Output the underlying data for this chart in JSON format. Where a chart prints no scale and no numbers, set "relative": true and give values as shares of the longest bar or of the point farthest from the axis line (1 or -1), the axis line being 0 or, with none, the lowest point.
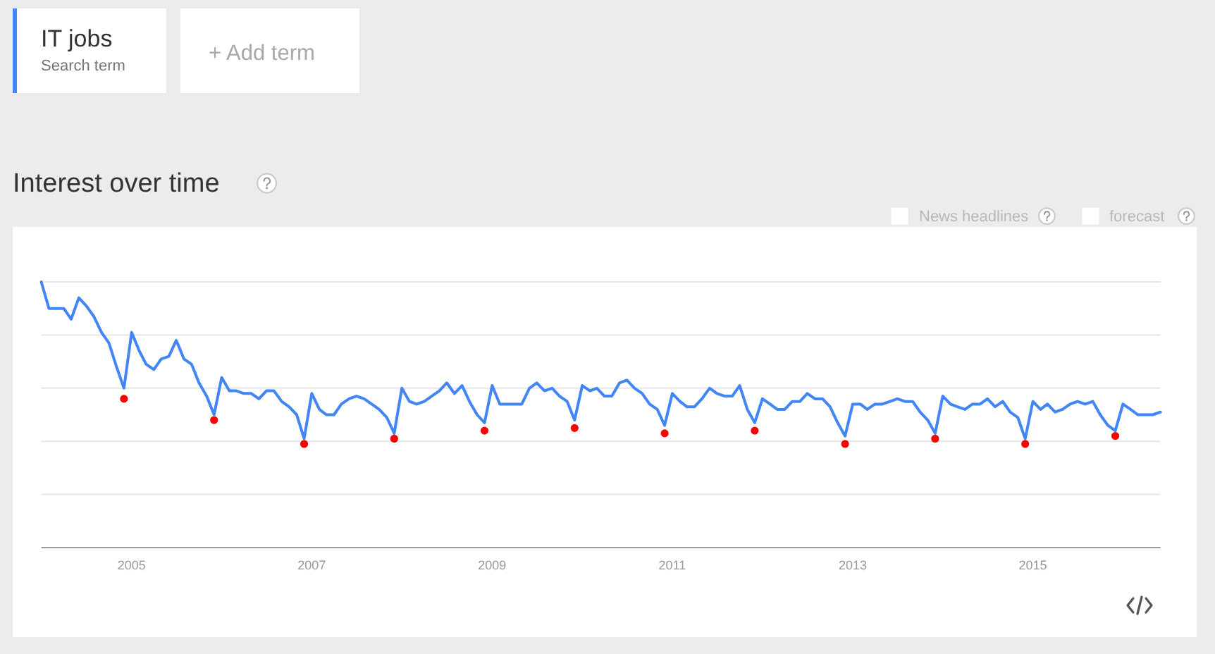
{
  "chart_data": {
    "type": "line",
    "title": "Interest over time",
    "relative": true,
    "x": [
      "2004-01",
      "2004-02",
      "2004-03",
      "2004-04",
      "2004-05",
      "2004-06",
      "2004-07",
      "2004-08",
      "2004-09",
      "2004-10",
      "2004-11",
      "2004-12",
      "2005-01",
      "2005-02",
      "2005-03",
      "2005-04",
      "2005-05",
      "2005-06",
      "2005-07",
      "2005-08",
      "2005-09",
      "2005-10",
      "2005-11",
      "2005-12",
      "2006-01",
      "2006-02",
      "2006-03",
      "2006-04",
      "2006-05",
      "2006-06",
      "2006-07",
      "2006-08",
      "2006-09",
      "2006-10",
      "2006-11",
      "2006-12",
      "2007-01",
      "2007-02",
      "2007-03",
      "2007-04",
      "2007-05",
      "2007-06",
      "2007-07",
      "2007-08",
      "2007-09",
      "2007-10",
      "2007-11",
      "2007-12",
      "2008-01",
      "2008-02",
      "2008-03",
      "2008-04",
      "2008-05",
      "2008-06",
      "2008-07",
      "2008-08",
      "2008-09",
      "2008-10",
      "2008-11",
      "2008-12",
      "2009-01",
      "2009-02",
      "2009-03",
      "2009-04",
      "2009-05",
      "2009-06",
      "2009-07",
      "2009-08",
      "2009-09",
      "2009-10",
      "2009-11",
      "2009-12",
      "2010-01",
      "2010-02",
      "2010-03",
      "2010-04",
      "2010-05",
      "2010-06",
      "2010-07",
      "2010-08",
      "2010-09",
      "2010-10",
      "2010-11",
      "2010-12",
      "2011-01",
      "2011-02",
      "2011-03",
      "2011-04",
      "2011-05",
      "2011-06",
      "2011-07",
      "2011-08",
      "2011-09",
      "2011-10",
      "2011-11",
      "2011-12",
      "2012-01",
      "2012-02",
      "2012-03",
      "2012-04",
      "2012-05",
      "2012-06",
      "2012-07",
      "2012-08",
      "2012-09",
      "2012-10",
      "2012-11",
      "2012-12",
      "2013-01",
      "2013-02",
      "2013-03",
      "2013-04",
      "2013-05",
      "2013-06",
      "2013-07",
      "2013-08",
      "2013-09",
      "2013-10",
      "2013-11",
      "2013-12",
      "2014-01",
      "2014-02",
      "2014-03",
      "2014-04",
      "2014-05",
      "2014-06",
      "2014-07",
      "2014-08",
      "2014-09",
      "2014-10",
      "2014-11",
      "2014-12",
      "2015-01",
      "2015-02",
      "2015-03",
      "2015-04",
      "2015-05",
      "2015-06",
      "2015-07",
      "2015-08",
      "2015-09",
      "2015-10",
      "2015-11",
      "2015-12",
      "2016-01",
      "2016-02",
      "2016-03",
      "2016-04",
      "2016-05",
      "2016-06"
    ],
    "series": [
      {
        "name": "IT jobs",
        "color": "#4285f4",
        "values": [
          1.0,
          0.9,
          0.9,
          0.9,
          0.86,
          0.94,
          0.91,
          0.87,
          0.81,
          0.77,
          0.68,
          0.6,
          0.81,
          0.74,
          0.69,
          0.67,
          0.71,
          0.72,
          0.78,
          0.71,
          0.69,
          0.62,
          0.57,
          0.5,
          0.64,
          0.59,
          0.59,
          0.58,
          0.58,
          0.56,
          0.59,
          0.59,
          0.55,
          0.53,
          0.5,
          0.41,
          0.58,
          0.52,
          0.5,
          0.5,
          0.54,
          0.56,
          0.57,
          0.56,
          0.54,
          0.52,
          0.49,
          0.43,
          0.6,
          0.55,
          0.54,
          0.55,
          0.57,
          0.59,
          0.62,
          0.58,
          0.61,
          0.55,
          0.5,
          0.47,
          0.61,
          0.54,
          0.54,
          0.54,
          0.54,
          0.6,
          0.62,
          0.59,
          0.6,
          0.57,
          0.55,
          0.48,
          0.61,
          0.59,
          0.6,
          0.57,
          0.57,
          0.62,
          0.63,
          0.6,
          0.58,
          0.54,
          0.52,
          0.46,
          0.58,
          0.55,
          0.53,
          0.53,
          0.56,
          0.6,
          0.58,
          0.57,
          0.57,
          0.61,
          0.52,
          0.47,
          0.56,
          0.54,
          0.52,
          0.52,
          0.55,
          0.55,
          0.58,
          0.56,
          0.56,
          0.53,
          0.47,
          0.42,
          0.54,
          0.54,
          0.52,
          0.54,
          0.54,
          0.55,
          0.56,
          0.55,
          0.55,
          0.51,
          0.48,
          0.43,
          0.57,
          0.54,
          0.53,
          0.52,
          0.54,
          0.54,
          0.56,
          0.53,
          0.55,
          0.51,
          0.49,
          0.41,
          0.55,
          0.52,
          0.54,
          0.51,
          0.52,
          0.54,
          0.55,
          0.54,
          0.55,
          0.5,
          0.46,
          0.44,
          0.54,
          0.52,
          0.5,
          0.5,
          0.5,
          0.51
        ]
      },
      {
        "type": "scatter",
        "color": "#ff0000",
        "marker": "circle",
        "x": [
          "2004-12",
          "2005-12",
          "2006-12",
          "2007-12",
          "2008-12",
          "2009-12",
          "2010-12",
          "2011-12",
          "2012-12",
          "2013-12",
          "2014-12",
          "2015-12"
        ],
        "values": [
          0.56,
          0.48,
          0.39,
          0.41,
          0.44,
          0.45,
          0.43,
          0.44,
          0.39,
          0.41,
          0.39,
          0.42
        ]
      }
    ],
    "xlim": [
      "2004-01",
      "2016-06"
    ],
    "xticks": [
      "2005",
      "2007",
      "2009",
      "2011",
      "2013",
      "2015"
    ],
    "grid": "y",
    "legend": "top left",
    "annotations": [
      "Search term",
      "+ Add term",
      "News headlines",
      "forecast"
    ]
  }
}
